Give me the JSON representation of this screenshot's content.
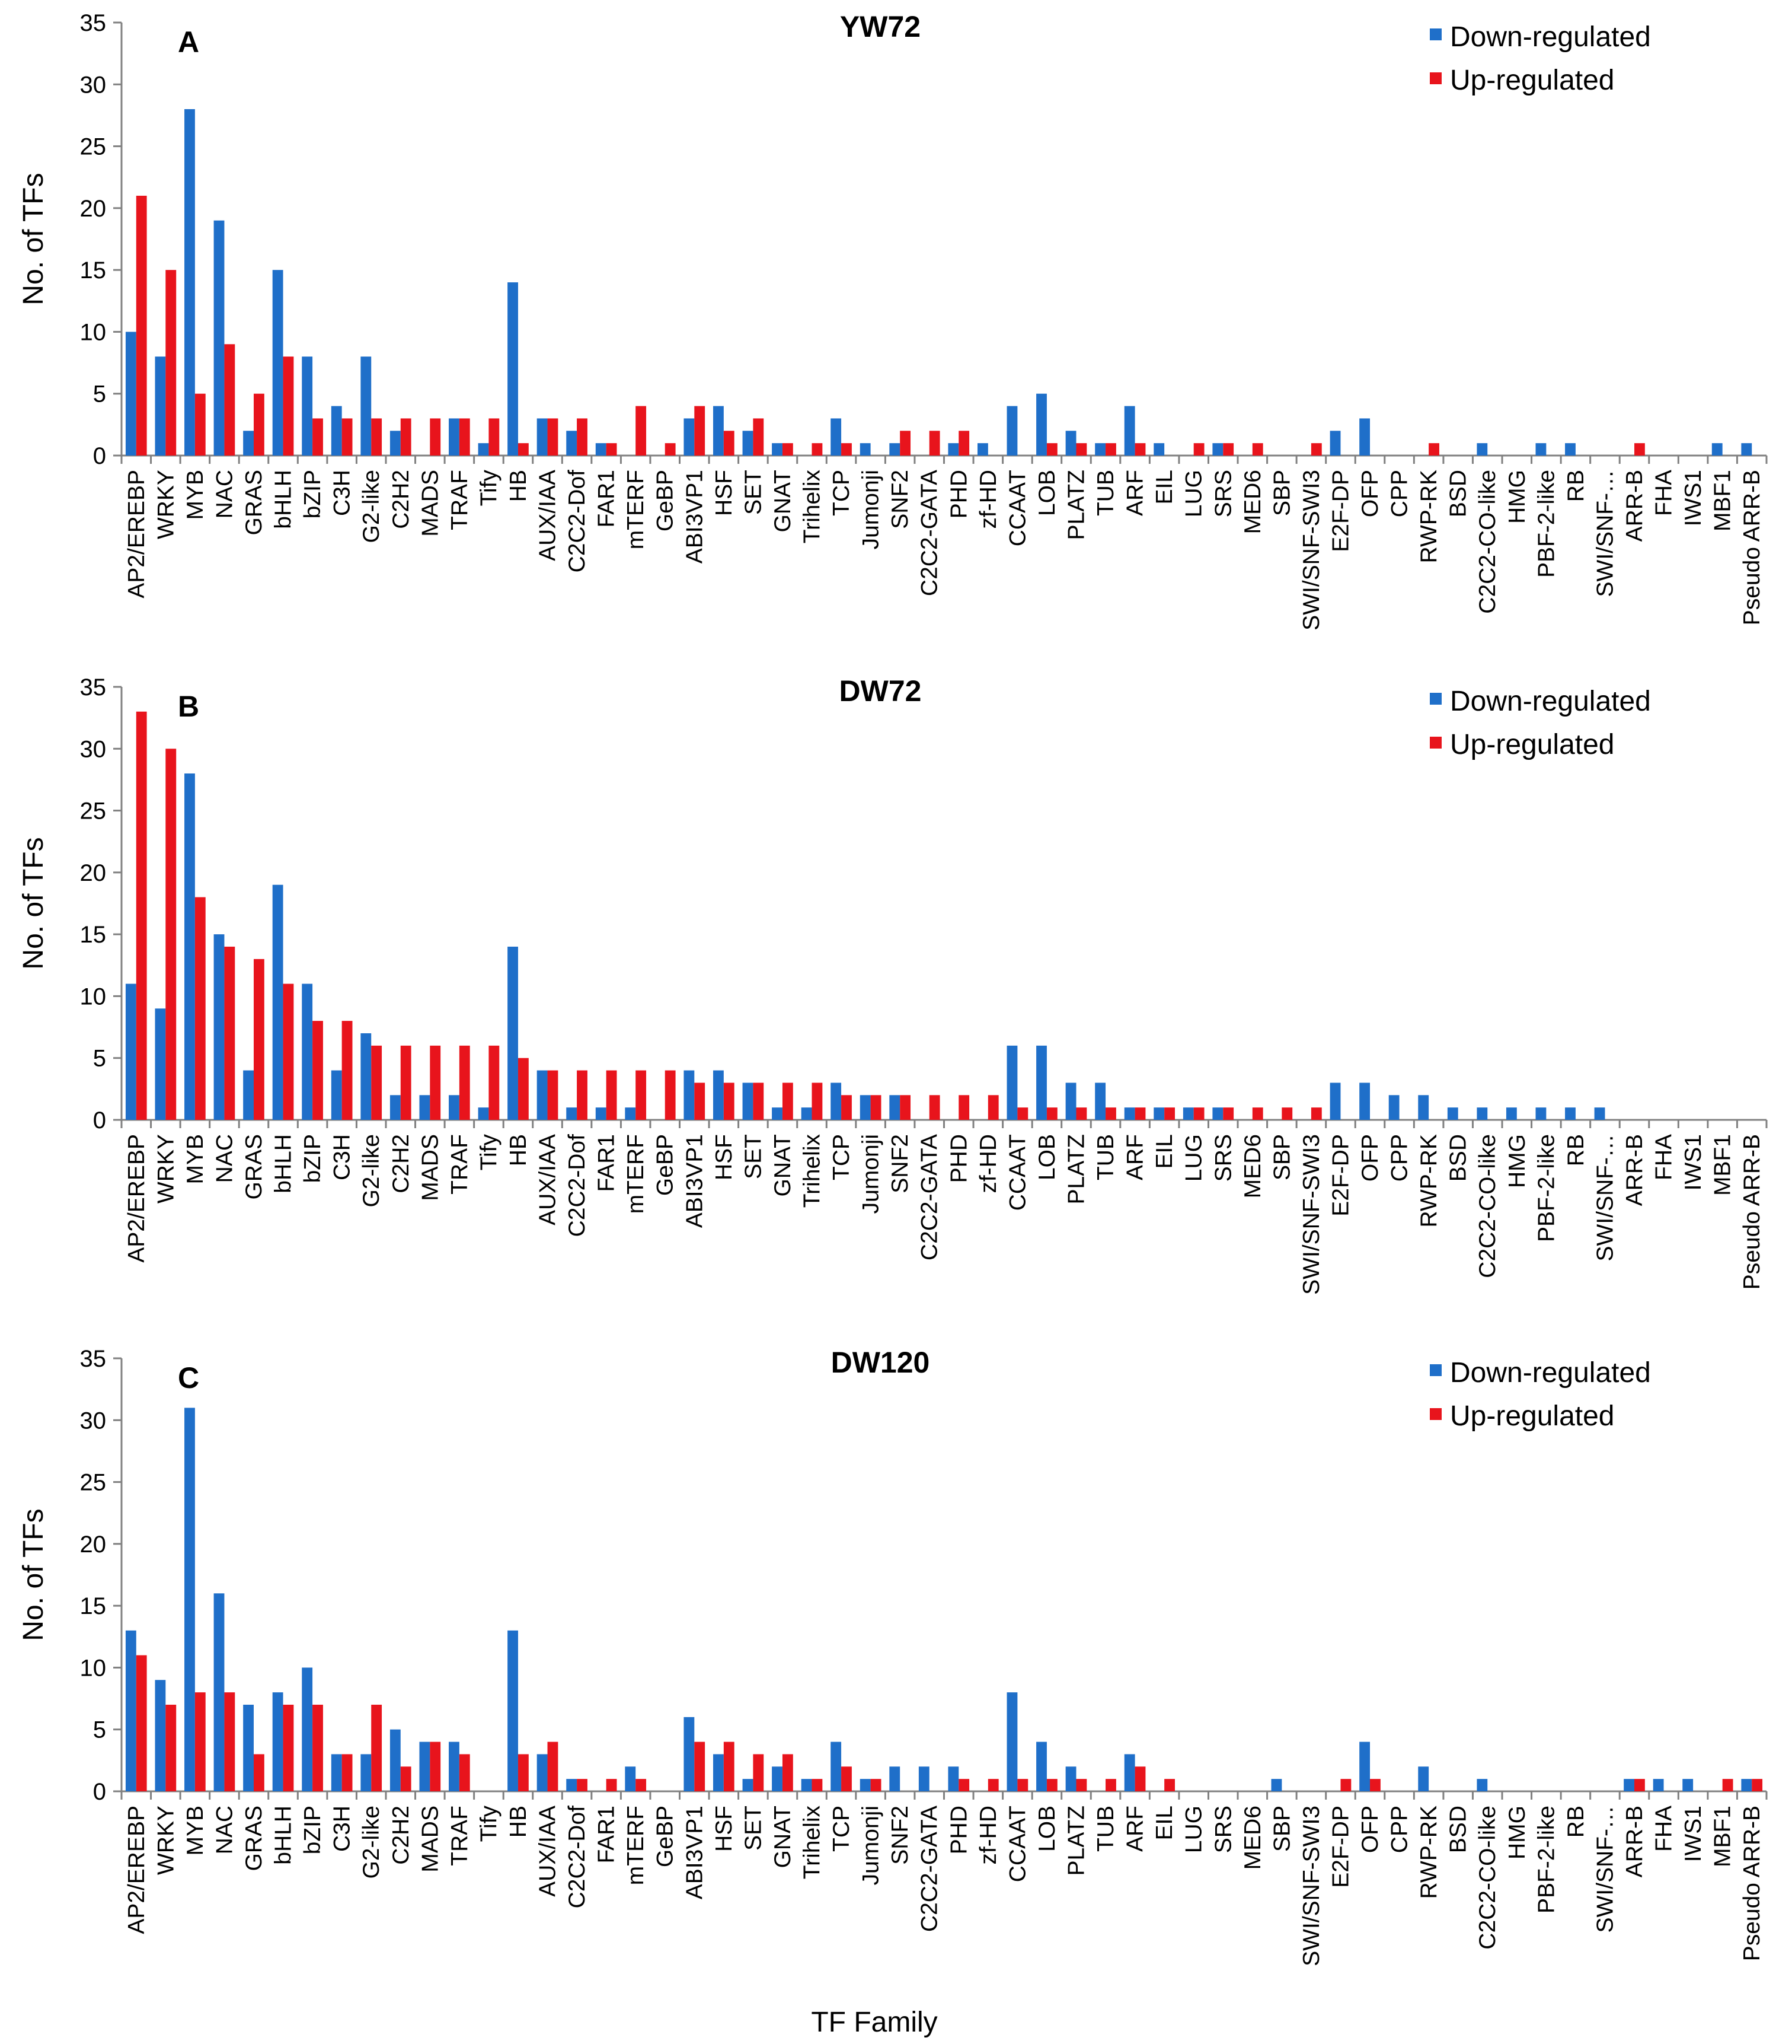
{
  "chart_data": {
    "type": "bar",
    "figure": "Three-panel grouped bar chart of TF family counts",
    "categories": [
      "AP2/EREBP",
      "WRKY",
      "MYB",
      "NAC",
      "GRAS",
      "bHLH",
      "bZIP",
      "C3H",
      "G2-like",
      "C2H2",
      "MADS",
      "TRAF",
      "Tify",
      "HB",
      "AUX/IAA",
      "C2C2-Dof",
      "FAR1",
      "mTERF",
      "GeBP",
      "ABI3VP1",
      "HSF",
      "SET",
      "GNAT",
      "Trihelix",
      "TCP",
      "Jumonji",
      "SNF2",
      "C2C2-GATA",
      "PHD",
      "zf-HD",
      "CCAAT",
      "LOB",
      "PLATZ",
      "TUB",
      "ARF",
      "EIL",
      "LUG",
      "SRS",
      "MED6",
      "SBP",
      "SWI/SNF-SWI3",
      "E2F-DP",
      "OFP",
      "CPP",
      "RWP-RK",
      "BSD",
      "C2C2-CO-like",
      "HMG",
      "PBF-2-like",
      "RB",
      "SWI/SNF-…",
      "ARR-B",
      "FHA",
      "IWS1",
      "MBF1",
      "Pseudo ARR-B"
    ],
    "ylabel": "No. of TFs",
    "xlabel": "TF Family",
    "ylim": [
      0,
      35
    ],
    "yticks": [
      0,
      5,
      10,
      15,
      20,
      25,
      30,
      35
    ],
    "legend": [
      "Down-regulated",
      "Up-regulated"
    ],
    "legend_position": "top-right",
    "colors": {
      "down": "#1f6fc9",
      "up": "#e8141c",
      "axis": "#808080"
    },
    "panels": [
      {
        "letter": "A",
        "title": "YW72",
        "series": [
          {
            "name": "Down-regulated",
            "values": [
              10,
              8,
              28,
              19,
              2,
              15,
              8,
              4,
              8,
              2,
              0,
              3,
              1,
              14,
              3,
              2,
              1,
              0,
              0,
              3,
              4,
              2,
              1,
              0,
              3,
              1,
              1,
              0,
              1,
              1,
              4,
              5,
              2,
              1,
              4,
              1,
              0,
              1,
              0,
              0,
              0,
              2,
              3,
              0,
              0,
              0,
              1,
              0,
              1,
              1,
              0,
              0,
              0,
              0,
              1,
              1
            ]
          },
          {
            "name": "Up-regulated",
            "values": [
              21,
              15,
              5,
              9,
              5,
              8,
              3,
              3,
              3,
              3,
              3,
              3,
              3,
              1,
              3,
              3,
              1,
              4,
              1,
              4,
              2,
              3,
              1,
              1,
              1,
              0,
              2,
              2,
              2,
              0,
              0,
              1,
              1,
              1,
              1,
              0,
              1,
              1,
              1,
              0,
              1,
              0,
              0,
              0,
              1,
              0,
              0,
              0,
              0,
              0,
              0,
              1,
              0,
              0,
              0,
              0
            ]
          }
        ]
      },
      {
        "letter": "B",
        "title": "DW72",
        "series": [
          {
            "name": "Down-regulated",
            "values": [
              11,
              9,
              28,
              15,
              4,
              19,
              11,
              4,
              7,
              2,
              2,
              2,
              1,
              14,
              4,
              1,
              1,
              1,
              0,
              4,
              4,
              3,
              1,
              1,
              3,
              2,
              2,
              0,
              0,
              0,
              6,
              6,
              3,
              3,
              1,
              1,
              1,
              1,
              0,
              0,
              0,
              3,
              3,
              2,
              2,
              1,
              1,
              1,
              1,
              1,
              1,
              0,
              0,
              0,
              0,
              0
            ]
          },
          {
            "name": "Up-regulated",
            "values": [
              33,
              30,
              18,
              14,
              13,
              11,
              8,
              8,
              6,
              6,
              6,
              6,
              6,
              5,
              4,
              4,
              4,
              4,
              4,
              3,
              3,
              3,
              3,
              3,
              2,
              2,
              2,
              2,
              2,
              2,
              1,
              1,
              1,
              1,
              1,
              1,
              1,
              1,
              1,
              1,
              1,
              0,
              0,
              0,
              0,
              0,
              0,
              0,
              0,
              0,
              0,
              0,
              0,
              0,
              0,
              0
            ]
          }
        ]
      },
      {
        "letter": "C",
        "title": "DW120",
        "series": [
          {
            "name": "Down-regulated",
            "values": [
              13,
              9,
              31,
              16,
              7,
              8,
              10,
              3,
              3,
              5,
              4,
              4,
              0,
              13,
              3,
              1,
              0,
              2,
              0,
              6,
              3,
              1,
              2,
              1,
              4,
              1,
              2,
              2,
              2,
              0,
              8,
              4,
              2,
              0,
              3,
              0,
              0,
              0,
              0,
              1,
              0,
              0,
              4,
              0,
              2,
              0,
              1,
              0,
              0,
              0,
              0,
              1,
              1,
              1,
              0,
              1
            ]
          },
          {
            "name": "Up-regulated",
            "values": [
              11,
              7,
              8,
              8,
              3,
              7,
              7,
              3,
              7,
              2,
              4,
              3,
              0,
              3,
              4,
              1,
              1,
              1,
              0,
              4,
              4,
              3,
              3,
              1,
              2,
              1,
              0,
              0,
              1,
              1,
              1,
              1,
              1,
              1,
              2,
              1,
              0,
              0,
              0,
              0,
              0,
              1,
              1,
              0,
              0,
              0,
              0,
              0,
              0,
              0,
              0,
              1,
              0,
              0,
              1,
              1
            ]
          }
        ]
      }
    ]
  }
}
